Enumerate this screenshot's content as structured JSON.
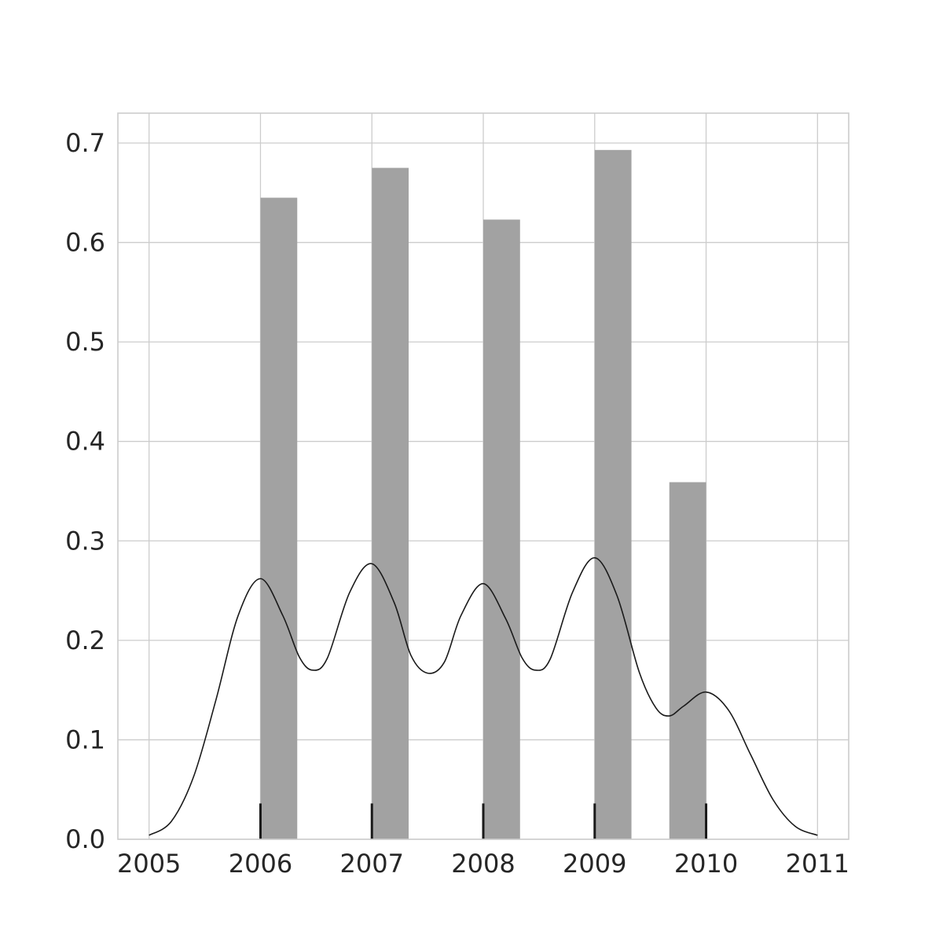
{
  "chart_data": {
    "type": "bar",
    "title": "",
    "xlabel": "",
    "ylabel": "",
    "xlim": [
      2004.72,
      2011.28
    ],
    "ylim": [
      0,
      0.73
    ],
    "grid": true,
    "x_ticks": [
      2005,
      2006,
      2007,
      2008,
      2009,
      2010,
      2011
    ],
    "x_tick_labels": [
      "2005",
      "2006",
      "2007",
      "2008",
      "2009",
      "2010",
      "2011"
    ],
    "y_ticks": [
      0.0,
      0.1,
      0.2,
      0.3,
      0.4,
      0.5,
      0.6,
      0.7
    ],
    "y_tick_labels": [
      "0.0",
      "0.1",
      "0.2",
      "0.3",
      "0.4",
      "0.5",
      "0.6",
      "0.7"
    ],
    "histogram": {
      "bins": [
        {
          "x0": 2006.0,
          "x1": 2006.33,
          "density": 0.645
        },
        {
          "x0": 2007.0,
          "x1": 2007.33,
          "density": 0.675
        },
        {
          "x0": 2008.0,
          "x1": 2008.33,
          "density": 0.623
        },
        {
          "x0": 2009.0,
          "x1": 2009.33,
          "density": 0.693
        },
        {
          "x0": 2009.67,
          "x1": 2010.0,
          "density": 0.359
        }
      ],
      "color": "#a2a2a2"
    },
    "kde": {
      "x": [
        2005.0,
        2005.2,
        2005.4,
        2005.6,
        2005.8,
        2006.0,
        2006.2,
        2006.35,
        2006.47,
        2006.6,
        2006.8,
        2007.0,
        2007.2,
        2007.35,
        2007.5,
        2007.65,
        2007.8,
        2008.0,
        2008.2,
        2008.35,
        2008.47,
        2008.6,
        2008.8,
        2009.0,
        2009.2,
        2009.4,
        2009.55,
        2009.67,
        2009.8,
        2010.0,
        2010.2,
        2010.4,
        2010.6,
        2010.8,
        2011.0
      ],
      "y": [
        0.004,
        0.018,
        0.063,
        0.14,
        0.225,
        0.262,
        0.225,
        0.183,
        0.17,
        0.182,
        0.248,
        0.277,
        0.238,
        0.185,
        0.167,
        0.178,
        0.225,
        0.257,
        0.222,
        0.182,
        0.17,
        0.181,
        0.248,
        0.283,
        0.245,
        0.168,
        0.132,
        0.124,
        0.134,
        0.148,
        0.13,
        0.085,
        0.04,
        0.013,
        0.004
      ],
      "color": "#1a1a1a"
    },
    "rug": {
      "x": [
        2006,
        2007,
        2008,
        2009,
        2010
      ],
      "height": 0.036,
      "color": "#1a1a1a"
    }
  }
}
